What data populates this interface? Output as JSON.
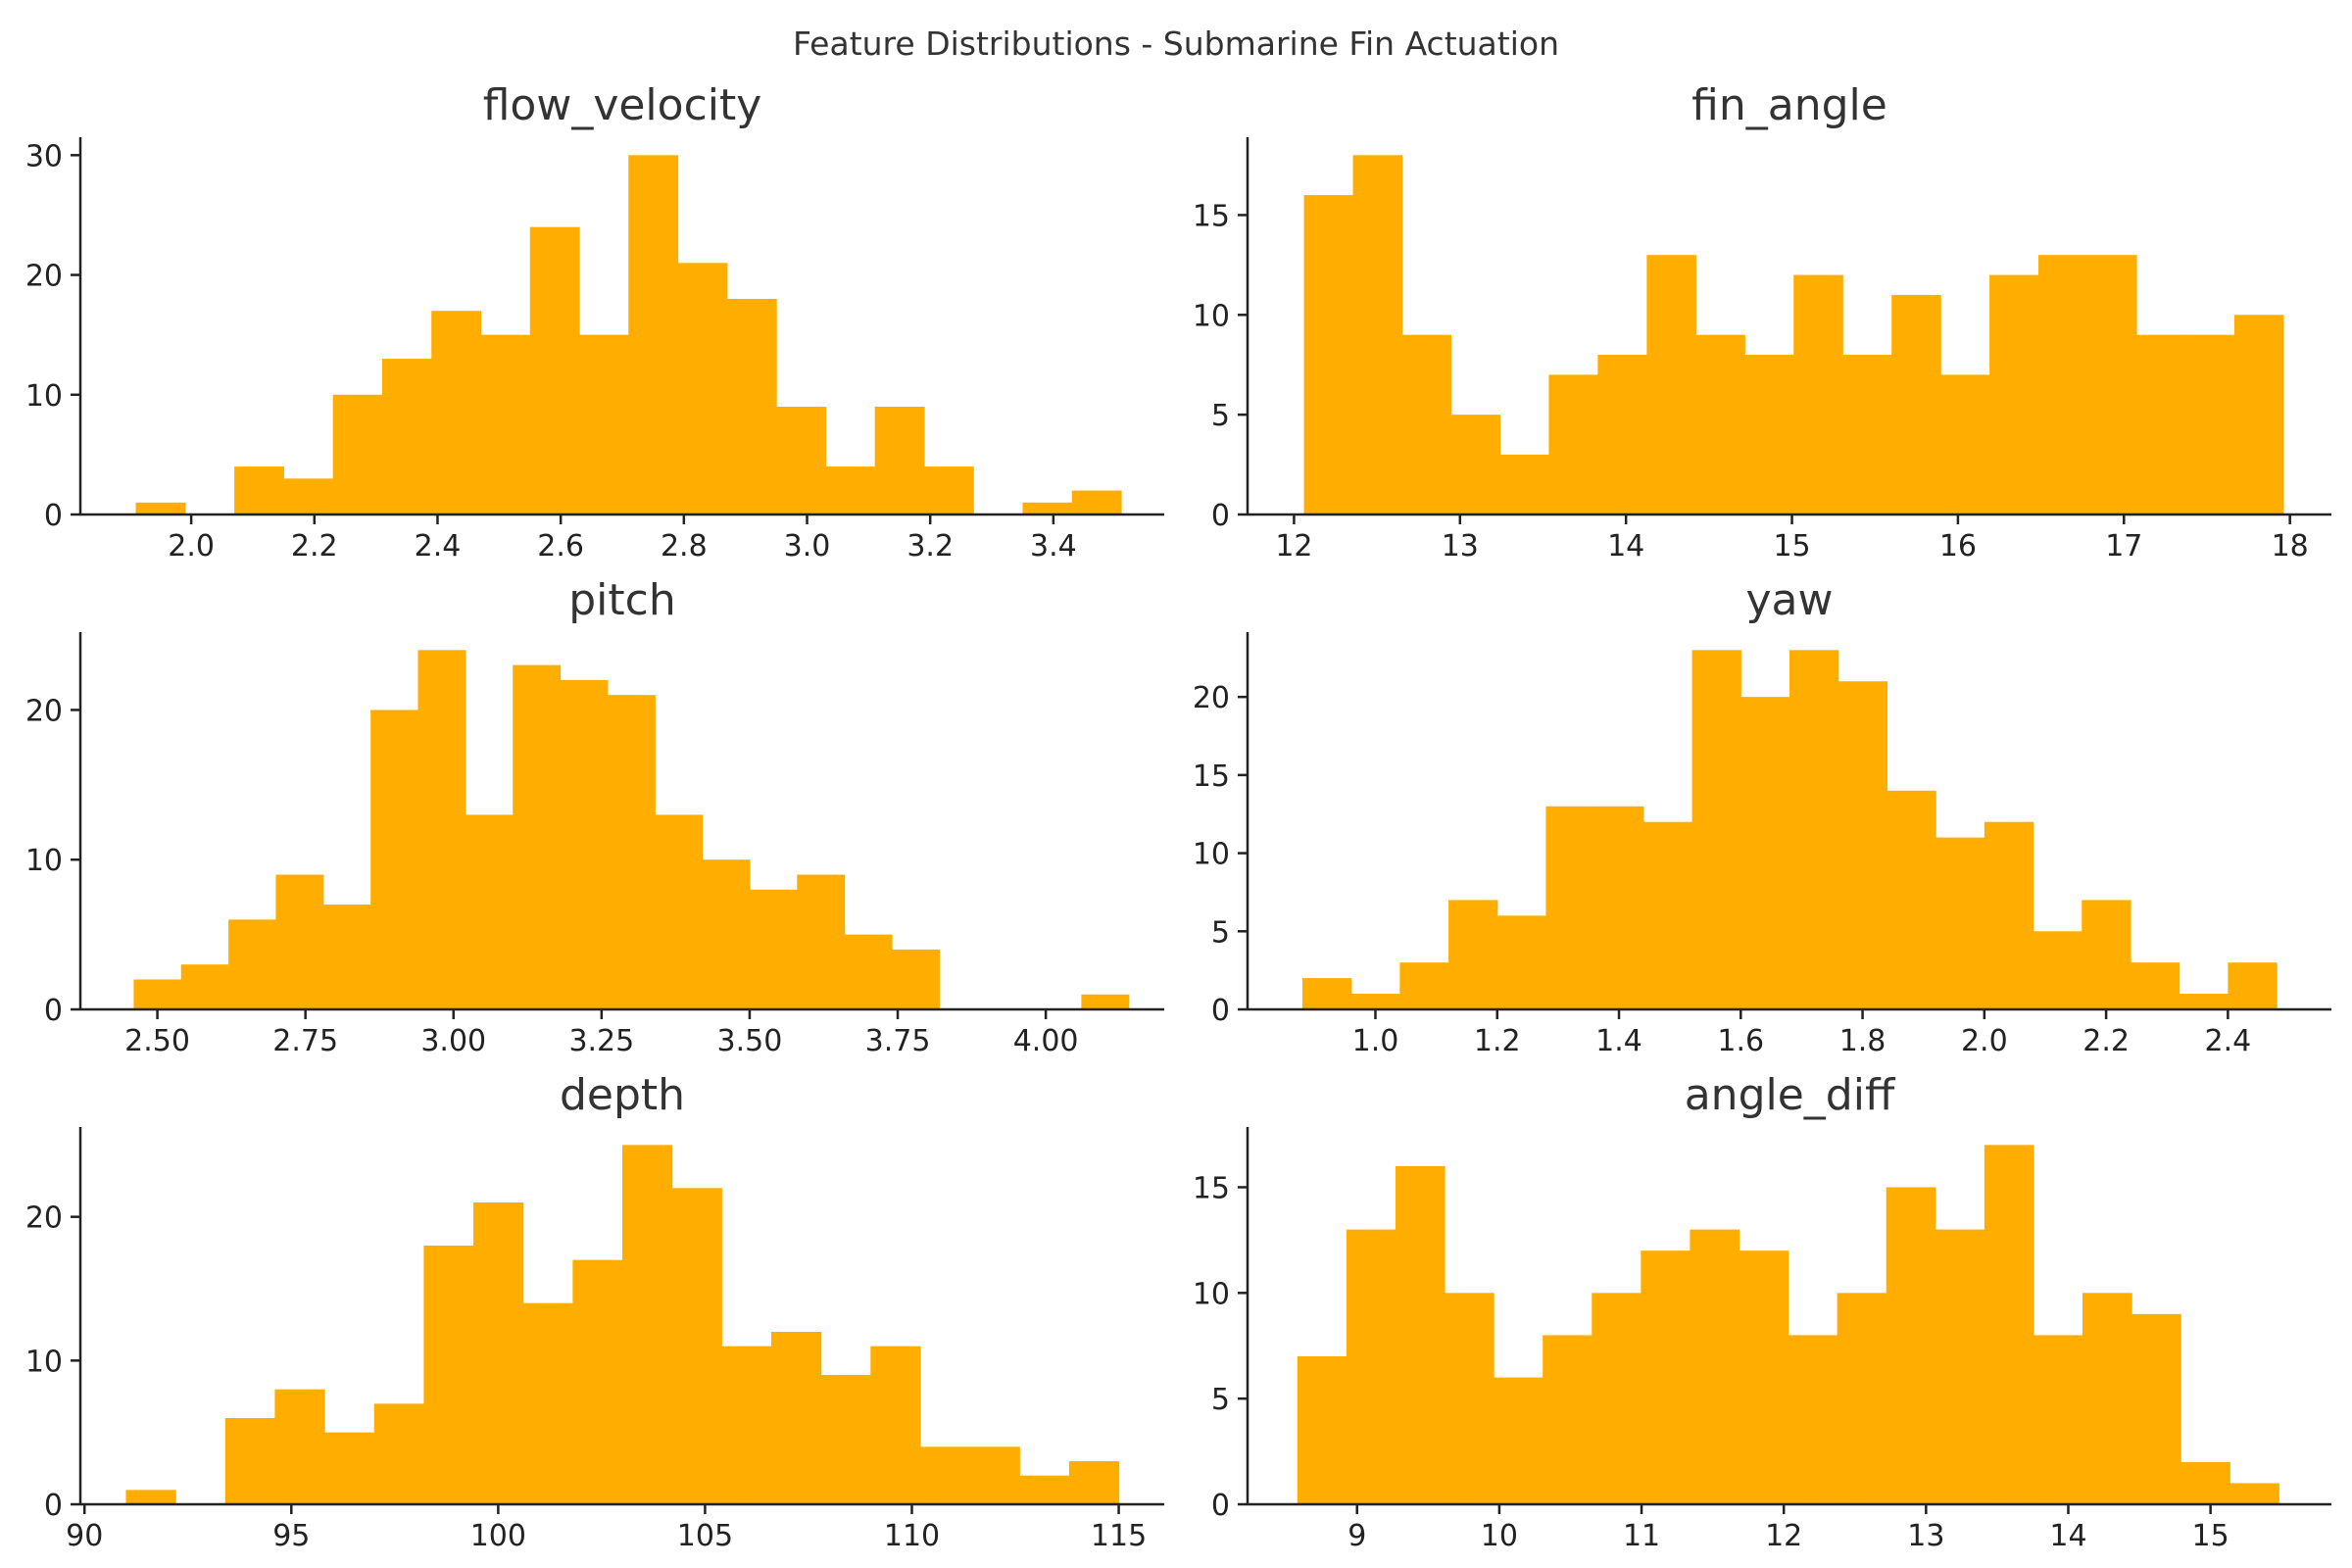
{
  "figure": {
    "title": "Feature Distributions - Submarine Fin Actuation"
  },
  "colors": {
    "bar": "#FFAE00",
    "axis": "#222222",
    "text": "#333333",
    "background": "#ffffff"
  },
  "chart_data": [
    {
      "type": "bar",
      "title": "flow_velocity",
      "xlabel": "",
      "ylabel": "",
      "bin_edges": [
        1.91,
        1.99,
        2.07,
        2.15,
        2.23,
        2.31,
        2.39,
        2.47,
        2.55,
        2.63,
        2.71,
        2.79,
        2.87,
        2.95,
        3.03,
        3.11,
        3.19,
        3.27,
        3.35,
        3.43,
        3.51
      ],
      "counts": [
        1,
        0,
        4,
        3,
        10,
        13,
        17,
        15,
        24,
        15,
        30,
        21,
        18,
        9,
        4,
        9,
        4,
        0,
        1,
        2
      ],
      "xlim": [
        1.82,
        3.58
      ],
      "ylim": [
        0,
        31.5
      ],
      "xticks": [
        2.0,
        2.2,
        2.4,
        2.6,
        2.8,
        3.0,
        3.2,
        3.4
      ],
      "xtick_labels": [
        "2.0",
        "2.2",
        "2.4",
        "2.6",
        "2.8",
        "3.0",
        "3.2",
        "3.4"
      ],
      "yticks": [
        0,
        10,
        20,
        30
      ],
      "ytick_labels": [
        "0",
        "10",
        "20",
        "30"
      ]
    },
    {
      "type": "bar",
      "title": "fin_angle",
      "xlabel": "",
      "ylabel": "",
      "bin_edges": [
        12.06,
        12.355,
        12.65,
        12.945,
        13.24,
        13.535,
        13.83,
        14.125,
        14.42,
        14.715,
        15.01,
        15.305,
        15.6,
        15.895,
        16.19,
        16.485,
        16.78,
        17.075,
        17.37,
        17.665,
        17.96
      ],
      "counts": [
        16,
        18,
        9,
        5,
        3,
        7,
        8,
        13,
        9,
        8,
        12,
        8,
        11,
        7,
        12,
        13,
        13,
        9,
        9,
        10
      ],
      "xlim": [
        11.72,
        18.25
      ],
      "ylim": [
        0,
        18.9
      ],
      "xticks": [
        12,
        13,
        14,
        15,
        16,
        17,
        18
      ],
      "xtick_labels": [
        "12",
        "13",
        "14",
        "15",
        "16",
        "17",
        "18"
      ],
      "yticks": [
        0,
        5,
        10,
        15
      ],
      "ytick_labels": [
        "0",
        "5",
        "10",
        "15"
      ]
    },
    {
      "type": "bar",
      "title": "pitch",
      "xlabel": "",
      "ylabel": "",
      "bin_edges": [
        2.46,
        2.54,
        2.62,
        2.7,
        2.78,
        2.86,
        2.94,
        3.02,
        3.1,
        3.18,
        3.26,
        3.34,
        3.42,
        3.5,
        3.58,
        3.66,
        3.74,
        3.82,
        3.9,
        3.98,
        4.06,
        4.14
      ],
      "counts": [
        2,
        3,
        6,
        9,
        7,
        20,
        24,
        13,
        23,
        22,
        21,
        13,
        10,
        8,
        9,
        5,
        4,
        0,
        0,
        0,
        1
      ],
      "xlim": [
        2.37,
        4.2
      ],
      "ylim": [
        0,
        25.2
      ],
      "xticks": [
        2.5,
        2.75,
        3.0,
        3.25,
        3.5,
        3.75,
        4.0
      ],
      "xtick_labels": [
        "2.50",
        "2.75",
        "3.00",
        "3.25",
        "3.50",
        "3.75",
        "4.00"
      ],
      "yticks": [
        0,
        10,
        20
      ],
      "ytick_labels": [
        "0",
        "10",
        "20"
      ]
    },
    {
      "type": "bar",
      "title": "yaw",
      "xlabel": "",
      "ylabel": "",
      "bin_edges": [
        0.88,
        0.96,
        1.04,
        1.12,
        1.2,
        1.28,
        1.36,
        1.44,
        1.52,
        1.6,
        1.68,
        1.76,
        1.84,
        1.92,
        2.0,
        2.08,
        2.16,
        2.24,
        2.32,
        2.4,
        2.48
      ],
      "counts": [
        2,
        1,
        3,
        7,
        6,
        13,
        13,
        12,
        23,
        20,
        23,
        21,
        14,
        11,
        12,
        5,
        7,
        3,
        1,
        3
      ],
      "xlim": [
        0.79,
        2.57
      ],
      "ylim": [
        0,
        24.15
      ],
      "xticks": [
        1.0,
        1.2,
        1.4,
        1.6,
        1.8,
        2.0,
        2.2,
        2.4
      ],
      "xtick_labels": [
        "1.0",
        "1.2",
        "1.4",
        "1.6",
        "1.8",
        "2.0",
        "2.2",
        "2.4"
      ],
      "yticks": [
        0,
        5,
        10,
        15,
        20
      ],
      "ytick_labels": [
        "0",
        "5",
        "10",
        "15",
        "20"
      ]
    },
    {
      "type": "bar",
      "title": "depth",
      "xlabel": "",
      "ylabel": "",
      "bin_edges": [
        91.0,
        92.2,
        93.4,
        94.6,
        95.8,
        97.0,
        98.2,
        99.4,
        100.6,
        101.8,
        103.0,
        104.2,
        105.4,
        106.6,
        107.8,
        109.0,
        110.2,
        111.4,
        112.6,
        113.8,
        115.0
      ],
      "counts": [
        1,
        0,
        6,
        8,
        5,
        7,
        18,
        21,
        14,
        17,
        25,
        22,
        11,
        12,
        9,
        11,
        4,
        4,
        2,
        3
      ],
      "xlim": [
        89.9,
        116.1
      ],
      "ylim": [
        0,
        26.25
      ],
      "xticks": [
        90,
        95,
        100,
        105,
        110,
        115
      ],
      "xtick_labels": [
        "90",
        "95",
        "100",
        "105",
        "110",
        "115"
      ],
      "yticks": [
        0,
        10,
        20
      ],
      "ytick_labels": [
        "0",
        "10",
        "20"
      ]
    },
    {
      "type": "bar",
      "title": "angle_diff",
      "xlabel": "",
      "ylabel": "",
      "bin_edges": [
        8.58,
        8.925,
        9.27,
        9.615,
        9.96,
        10.305,
        10.65,
        10.995,
        11.34,
        11.685,
        12.03,
        12.375,
        12.72,
        13.065,
        13.41,
        13.755,
        14.1,
        14.445,
        14.79,
        15.135,
        15.48
      ],
      "counts": [
        7,
        13,
        16,
        10,
        6,
        8,
        10,
        12,
        13,
        12,
        8,
        10,
        15,
        13,
        17,
        8,
        10,
        9,
        2,
        1
      ],
      "xlim": [
        8.23,
        15.85
      ],
      "ylim": [
        0,
        17.85
      ],
      "xticks": [
        9,
        10,
        11,
        12,
        13,
        14,
        15
      ],
      "xtick_labels": [
        "9",
        "10",
        "11",
        "12",
        "13",
        "14",
        "15"
      ],
      "yticks": [
        0,
        5,
        10,
        15
      ],
      "ytick_labels": [
        "0",
        "5",
        "10",
        "15"
      ]
    }
  ]
}
